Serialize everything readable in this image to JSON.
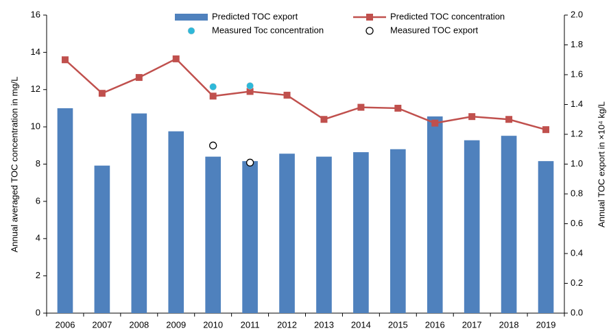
{
  "chart_data": {
    "type": "combo",
    "y_label": "Annual averaged TOC concentration in mg/L",
    "y2_label": "Annual TOC export in ×10⁴ kg/L",
    "categories": [
      "2006",
      "2007",
      "2008",
      "2009",
      "2010",
      "2011",
      "2012",
      "2013",
      "2014",
      "2015",
      "2016",
      "2017",
      "2018",
      "2019"
    ],
    "ylim": [
      0,
      16
    ],
    "yticks": [
      0,
      2,
      4,
      6,
      8,
      10,
      12,
      14,
      16
    ],
    "y2lim": [
      0,
      2
    ],
    "y2ticks": [
      {
        "value": 0,
        "label": "0.0"
      },
      0.2,
      0.4,
      0.6,
      0.8,
      {
        "value": 1,
        "label": "1.0"
      },
      1.2,
      1.4,
      1.6,
      1.8,
      {
        "value": 2,
        "label": "2.0"
      }
    ],
    "grid": false,
    "series": [
      {
        "name": "Predicted TOC export",
        "type": "bar",
        "axis": "y2",
        "color": "#4f81bd",
        "values": [
          1.375,
          0.99,
          1.34,
          1.22,
          1.05,
          1.02,
          1.07,
          1.05,
          1.08,
          1.1,
          1.32,
          1.16,
          1.19,
          1.02
        ]
      },
      {
        "name": "Predicted TOC concentration",
        "type": "line",
        "marker": "square",
        "color": "#c0504d",
        "values": [
          13.6,
          11.8,
          12.65,
          13.65,
          11.65,
          11.9,
          11.7,
          10.4,
          11.05,
          11.0,
          10.2,
          10.55,
          10.4,
          9.85
        ]
      },
      {
        "name": "Measured Toc concentration",
        "type": "scatter",
        "marker": "circle",
        "color": "#2eb8d9",
        "filled": true,
        "values": [
          null,
          null,
          null,
          null,
          12.15,
          12.2,
          null,
          null,
          null,
          null,
          null,
          null,
          null,
          null
        ]
      },
      {
        "name": "Measured TOC export",
        "type": "scatter",
        "axis": "y2",
        "marker": "circle",
        "color": "#000000",
        "filled": false,
        "values": [
          null,
          null,
          null,
          null,
          1.125,
          1.01,
          null,
          null,
          null,
          null,
          null,
          null,
          null,
          null
        ]
      }
    ]
  }
}
